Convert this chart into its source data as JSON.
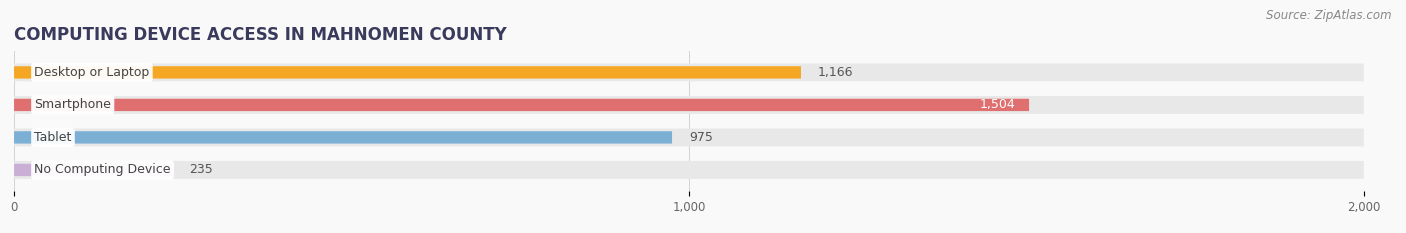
{
  "title": "COMPUTING DEVICE ACCESS IN MAHNOMEN COUNTY",
  "source": "Source: ZipAtlas.com",
  "categories": [
    "Desktop or Laptop",
    "Smartphone",
    "Tablet",
    "No Computing Device"
  ],
  "values": [
    1166,
    1504,
    975,
    235
  ],
  "bar_colors": [
    "#f5a623",
    "#e07070",
    "#7bafd4",
    "#c9aed6"
  ],
  "bar_bg_color": "#e8e8e8",
  "xlim": [
    0,
    2000
  ],
  "xticks": [
    0,
    1000,
    2000
  ],
  "xtick_labels": [
    "0",
    "1,000",
    "2,000"
  ],
  "title_color": "#3a3a5c",
  "title_fontsize": 12,
  "label_fontsize": 9,
  "value_fontsize": 9,
  "source_fontsize": 8.5,
  "source_color": "#888888",
  "background_color": "#f9f9f9"
}
